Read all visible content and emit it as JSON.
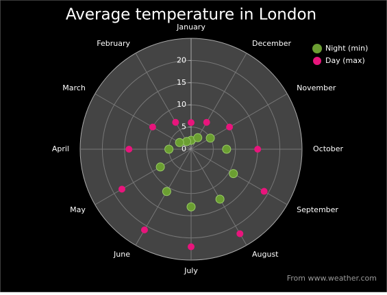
{
  "chart_data": {
    "type": "polar-scatter",
    "title": "Average temperature in London",
    "source": "From www.weather.com",
    "categories": [
      "January",
      "February",
      "March",
      "April",
      "May",
      "June",
      "July",
      "August",
      "September",
      "October",
      "November",
      "December"
    ],
    "series": [
      {
        "name": "Night (min)",
        "color": "#6b9e32",
        "values": [
          2,
          2,
          3,
          5,
          8,
          11,
          13,
          13,
          11,
          8,
          5,
          3
        ]
      },
      {
        "name": "Day (max)",
        "color": "#e8157c",
        "values": [
          6,
          7,
          10,
          14,
          18,
          21,
          22,
          22,
          19,
          15,
          10,
          7
        ]
      }
    ],
    "ylim": [
      0,
      25
    ],
    "yticks": [
      0,
      5,
      10,
      15,
      20
    ],
    "grid": true,
    "legend": "top-right"
  }
}
